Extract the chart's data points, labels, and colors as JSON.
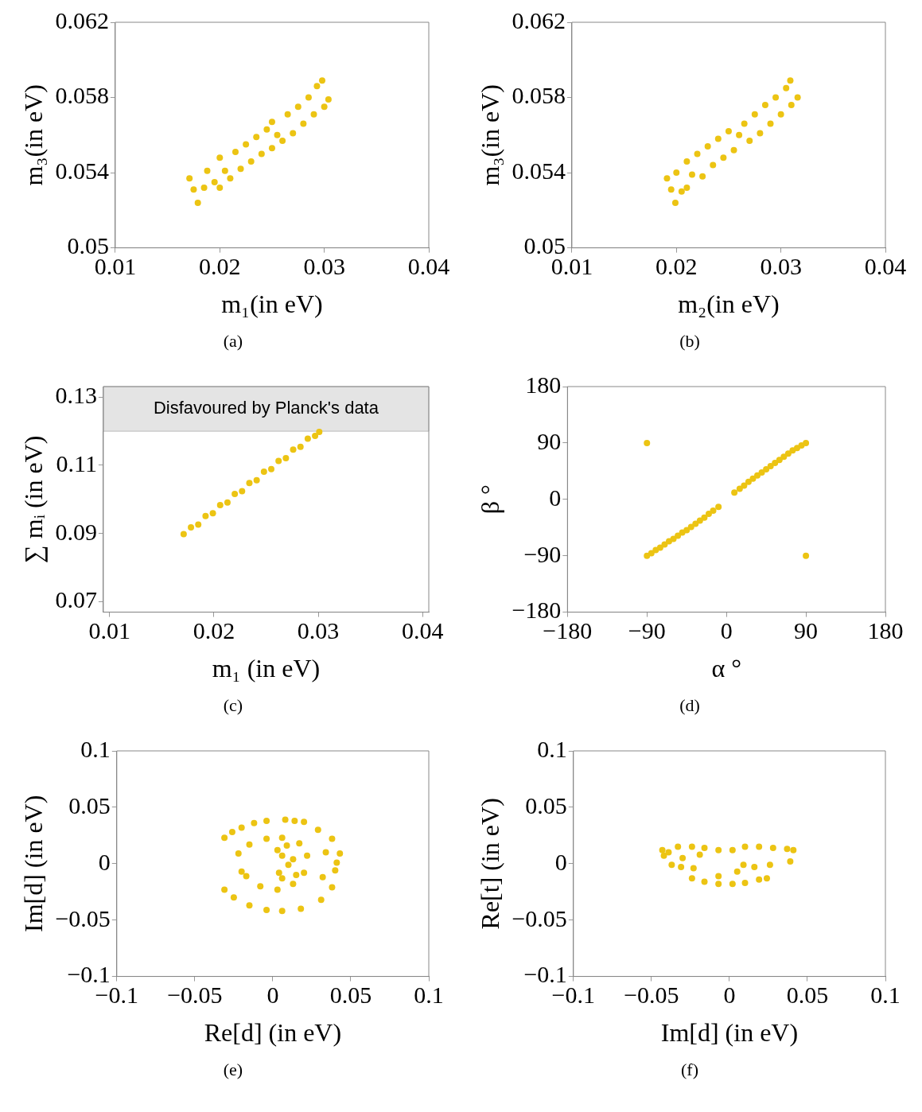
{
  "chart_data": [
    {
      "type": "scatter",
      "xlabel": "m₁(in eV)",
      "ylabel": "m₃(in eV)",
      "annotations": [
        "(a)"
      ],
      "color": "#ecc413",
      "marker": "circle",
      "xlim": [
        0.01,
        0.04
      ],
      "ylim": [
        0.05,
        0.062
      ],
      "xticks": [
        0.01,
        0.02,
        0.03,
        0.04
      ],
      "yticks": [
        0.05,
        0.054,
        0.058,
        0.062
      ],
      "x": [
        0.0171,
        0.0175,
        0.0179,
        0.0185,
        0.0188,
        0.0195,
        0.02,
        0.02,
        0.0205,
        0.021,
        0.0215,
        0.022,
        0.0225,
        0.023,
        0.0235,
        0.024,
        0.0245,
        0.025,
        0.025,
        0.0255,
        0.026,
        0.0265,
        0.027,
        0.0275,
        0.028,
        0.0285,
        0.029,
        0.0293,
        0.0298,
        0.03,
        0.0304
      ],
      "values": [
        0.0537,
        0.0531,
        0.0524,
        0.0532,
        0.0541,
        0.0535,
        0.0548,
        0.0532,
        0.0541,
        0.0537,
        0.0551,
        0.0542,
        0.0555,
        0.0546,
        0.0559,
        0.055,
        0.0563,
        0.0553,
        0.0567,
        0.056,
        0.0557,
        0.0571,
        0.0561,
        0.0575,
        0.0566,
        0.058,
        0.0571,
        0.0586,
        0.0589,
        0.0575,
        0.0579
      ]
    },
    {
      "type": "scatter",
      "xlabel": "m₂(in eV)",
      "ylabel": "m₃(in eV)",
      "annotations": [
        "(b)"
      ],
      "color": "#ecc413",
      "marker": "circle",
      "xlim": [
        0.01,
        0.04
      ],
      "ylim": [
        0.05,
        0.062
      ],
      "xticks": [
        0.01,
        0.02,
        0.03,
        0.04
      ],
      "yticks": [
        0.05,
        0.054,
        0.058,
        0.062
      ],
      "x": [
        0.0191,
        0.0195,
        0.0199,
        0.02,
        0.0205,
        0.021,
        0.021,
        0.0215,
        0.022,
        0.0225,
        0.023,
        0.0235,
        0.024,
        0.0245,
        0.025,
        0.0255,
        0.026,
        0.0265,
        0.027,
        0.0275,
        0.028,
        0.0285,
        0.029,
        0.0295,
        0.03,
        0.0305,
        0.0309,
        0.031,
        0.0316
      ],
      "values": [
        0.0537,
        0.0531,
        0.0524,
        0.054,
        0.053,
        0.0546,
        0.0532,
        0.0539,
        0.055,
        0.0538,
        0.0554,
        0.0544,
        0.0558,
        0.0548,
        0.0562,
        0.0552,
        0.056,
        0.0566,
        0.0557,
        0.0571,
        0.0561,
        0.0576,
        0.0566,
        0.058,
        0.0571,
        0.0585,
        0.0589,
        0.0576,
        0.058
      ]
    },
    {
      "type": "scatter",
      "xlabel": "m₁ (in eV)",
      "ylabel": "∑ mᵢ (in eV)",
      "annotations": [
        "(c)"
      ],
      "color": "#ecc413",
      "marker": "circle",
      "xlim": [
        0.0094,
        0.0406
      ],
      "ylim": [
        0.0669,
        0.1331
      ],
      "xticks": [
        0.01,
        0.02,
        0.03,
        0.04
      ],
      "yticks": [
        0.07,
        0.09,
        0.11,
        0.13
      ],
      "bands": [
        {
          "axis": "y",
          "from": 0.12,
          "to": 0.1331,
          "label": "Disfavoured by Planck's data",
          "color": "#e4e4e4"
        }
      ],
      "x": [
        0.0171,
        0.0178,
        0.0185,
        0.0192,
        0.0199,
        0.0206,
        0.0213,
        0.022,
        0.0227,
        0.0234,
        0.0241,
        0.0248,
        0.0255,
        0.0262,
        0.0269,
        0.0276,
        0.0283,
        0.029,
        0.0297,
        0.0301
      ],
      "values": [
        0.0898,
        0.0918,
        0.0926,
        0.0951,
        0.0959,
        0.0983,
        0.0991,
        0.1016,
        0.1024,
        0.1048,
        0.1056,
        0.1081,
        0.1089,
        0.1113,
        0.1121,
        0.1146,
        0.1154,
        0.1178,
        0.1186,
        0.1198
      ]
    },
    {
      "type": "scatter",
      "xlabel": "α °",
      "ylabel": "β °",
      "annotations": [
        "(d)"
      ],
      "color": "#ecc413",
      "marker": "circle",
      "xlim": [
        -180,
        180
      ],
      "ylim": [
        -180,
        180
      ],
      "xticks": [
        {
          "value": -180,
          "label": "−180"
        },
        {
          "value": -90,
          "label": "−90"
        },
        0,
        90,
        180
      ],
      "yticks": [
        {
          "value": -180,
          "label": "−180"
        },
        {
          "value": -90,
          "label": "−90"
        },
        0,
        90,
        180
      ],
      "x": [
        -90,
        -85,
        -80,
        -75,
        -70,
        -65,
        -60,
        -55,
        -50,
        -45,
        -40,
        -35,
        -30,
        -25,
        -20,
        -15,
        -9,
        9,
        15,
        20,
        25,
        30,
        35,
        40,
        45,
        50,
        55,
        60,
        65,
        70,
        75,
        80,
        85,
        90,
        -90,
        90
      ],
      "values": [
        -90,
        -86,
        -81,
        -77,
        -72,
        -67,
        -63,
        -58,
        -53,
        -49,
        -44,
        -39,
        -34,
        -29,
        -23,
        -18,
        -12,
        11,
        17,
        22,
        28,
        33,
        38,
        43,
        48,
        53,
        58,
        63,
        68,
        73,
        78,
        82,
        86,
        90,
        90,
        -90
      ]
    },
    {
      "type": "scatter",
      "xlabel": "Re[d] (in eV)",
      "ylabel": "Im[d] (in eV)",
      "annotations": [
        "(e)"
      ],
      "color": "#ecc413",
      "marker": "circle",
      "xlim": [
        -0.1,
        0.1
      ],
      "ylim": [
        -0.1,
        0.1
      ],
      "xticks": [
        {
          "value": -0.1,
          "label": "−0.1"
        },
        {
          "value": -0.05,
          "label": "−0.05"
        },
        0,
        0.05,
        0.1
      ],
      "yticks": [
        {
          "value": -0.1,
          "label": "−0.1"
        },
        {
          "value": -0.05,
          "label": "−0.05"
        },
        0,
        0.05,
        0.1
      ],
      "x": [
        -0.031,
        -0.026,
        -0.02,
        -0.012,
        -0.004,
        0.008,
        0.014,
        0.02,
        0.029,
        0.038,
        0.043,
        0.041,
        0.04,
        0.038,
        0.031,
        0.018,
        0.006,
        -0.004,
        -0.015,
        -0.025,
        -0.031,
        -0.022,
        -0.015,
        -0.004,
        0.006,
        0.017,
        0.022,
        0.02,
        0.013,
        0.003,
        -0.008,
        -0.017,
        -0.02,
        0.006,
        0.01,
        0.004,
        0.003,
        0.013,
        0.006,
        0.009,
        0.015,
        0.034,
        0.032
      ],
      "values": [
        0.023,
        0.028,
        0.032,
        0.036,
        0.038,
        0.039,
        0.038,
        0.037,
        0.03,
        0.022,
        0.009,
        0.001,
        -0.006,
        -0.021,
        -0.032,
        -0.04,
        -0.042,
        -0.041,
        -0.037,
        -0.03,
        -0.023,
        0.009,
        0.017,
        0.022,
        0.023,
        0.018,
        0.007,
        -0.008,
        -0.018,
        -0.023,
        -0.02,
        -0.011,
        -0.007,
        0.007,
        -0.001,
        -0.008,
        0.012,
        0.004,
        -0.013,
        0.016,
        -0.01,
        0.01,
        -0.012
      ]
    },
    {
      "type": "scatter",
      "xlabel": "Im[d] (in eV)",
      "ylabel": "Re[t] (in eV)",
      "annotations": [
        "(f)"
      ],
      "color": "#ecc413",
      "marker": "circle",
      "xlim": [
        -0.1,
        0.1
      ],
      "ylim": [
        -0.1,
        0.1
      ],
      "xticks": [
        {
          "value": -0.1,
          "label": "−0.1"
        },
        {
          "value": -0.05,
          "label": "−0.05"
        },
        0,
        0.05,
        0.1
      ],
      "yticks": [
        {
          "value": -0.1,
          "label": "−0.1"
        },
        {
          "value": -0.05,
          "label": "−0.05"
        },
        0,
        0.05,
        0.1
      ],
      "x": [
        -0.043,
        -0.042,
        -0.037,
        -0.031,
        -0.023,
        -0.033,
        -0.024,
        -0.016,
        -0.007,
        0.002,
        0.01,
        0.019,
        0.028,
        0.037,
        0.041,
        -0.019,
        -0.03,
        -0.039,
        -0.024,
        -0.016,
        -0.007,
        0.002,
        0.01,
        0.019,
        0.024,
        -0.007,
        0.005,
        0.016,
        0.026,
        0.039,
        0.009
      ],
      "values": [
        0.012,
        0.007,
        -0.001,
        -0.003,
        -0.004,
        0.015,
        0.015,
        0.014,
        0.012,
        0.012,
        0.015,
        0.015,
        0.014,
        0.013,
        0.012,
        0.008,
        0.005,
        0.01,
        -0.013,
        -0.016,
        -0.018,
        -0.018,
        -0.017,
        -0.014,
        -0.013,
        -0.011,
        -0.007,
        -0.003,
        -0.001,
        0.002,
        -0.001
      ]
    }
  ]
}
